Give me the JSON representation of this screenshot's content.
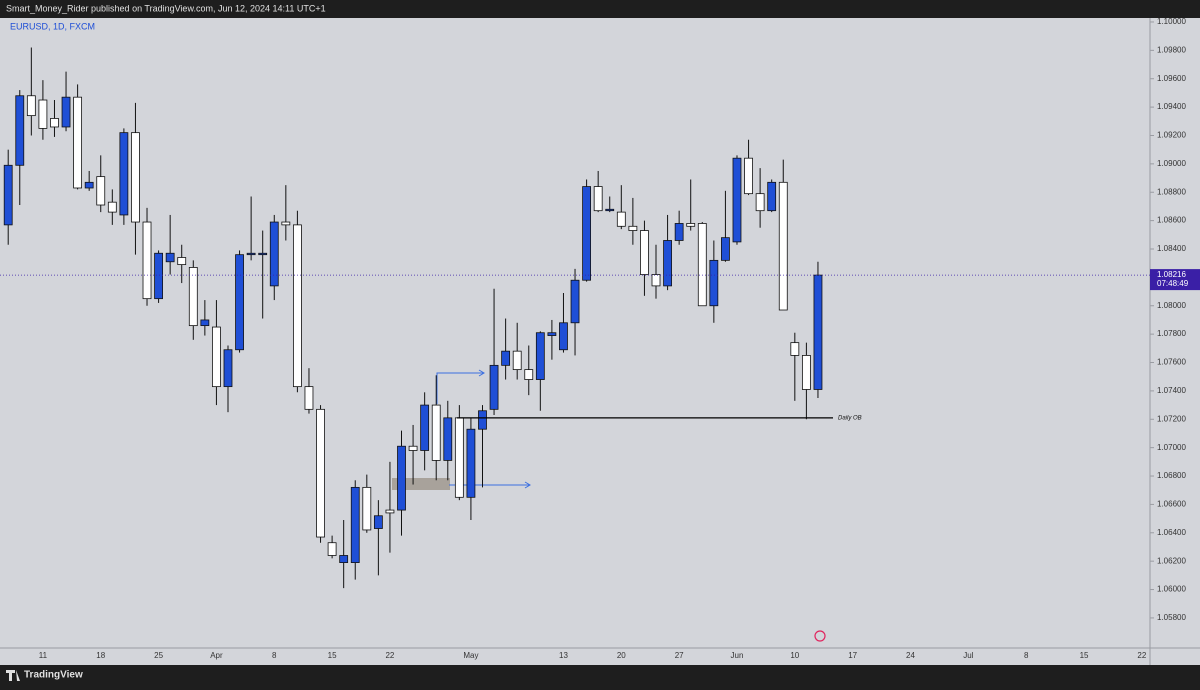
{
  "header": {
    "text": "Smart_Money_Rider published on TradingView.com, Jun 12, 2024 14:11 UTC+1"
  },
  "footer": {
    "brand": "TradingView"
  },
  "chart_data": {
    "type": "candlestick",
    "title": "EURUSD, 1D, FXCM",
    "up_color": "#1f4fd6",
    "down_color": "#ffffff",
    "categories": [
      null,
      null,
      null,
      "11",
      null,
      null,
      null,
      null,
      "18",
      null,
      null,
      null,
      null,
      "25",
      null,
      null,
      null,
      null,
      "Apr",
      null,
      null,
      null,
      null,
      "8",
      null,
      null,
      null,
      null,
      "15",
      null,
      null,
      null,
      null,
      "22",
      null,
      null,
      null,
      null,
      null,
      null,
      "May",
      null,
      null,
      null,
      null,
      null,
      null,
      null,
      "13",
      null,
      null,
      null,
      null,
      "20",
      null,
      null,
      null,
      null,
      "27",
      null,
      null,
      null,
      null,
      "Jun",
      null,
      null,
      null,
      null,
      "10",
      null,
      null,
      null,
      null,
      "17",
      null,
      null,
      null,
      null,
      "24",
      null,
      null,
      null,
      null,
      "Jul",
      null,
      null,
      null,
      null,
      "8",
      null,
      null,
      null,
      null,
      "15",
      null,
      null,
      null,
      null,
      "22"
    ],
    "open": [
      1.0857,
      1.0899,
      1.0948,
      1.0945,
      1.0932,
      1.0926,
      1.0947,
      1.0883,
      1.0891,
      1.0873,
      1.0864,
      1.0922,
      1.0859,
      1.0805,
      1.0831,
      1.0834,
      1.0827,
      1.0786,
      1.0785,
      1.0743,
      1.0769,
      1.0836,
      1.0836,
      1.0814,
      1.0859,
      1.0857,
      1.0743,
      1.0727,
      1.0633,
      1.0619,
      1.0619,
      1.0672,
      1.0643,
      1.0656,
      1.0656,
      1.0701,
      1.0698,
      1.073,
      1.0691,
      1.0721,
      1.0665,
      1.0713,
      1.0727,
      1.0758,
      1.0768,
      1.0755,
      1.0748,
      1.0779,
      1.0769,
      1.0788,
      1.0818,
      1.0884,
      1.0867,
      1.0866,
      1.0856,
      1.0853,
      1.0822,
      1.0814,
      1.0846,
      1.0858,
      1.0858,
      1.08,
      1.0832,
      1.0845,
      1.0904,
      1.0879,
      1.0867,
      1.0887,
      1.0774,
      1.0765,
      1.0741,
      null,
      null,
      null,
      null,
      null,
      null,
      null,
      null,
      null,
      null,
      null,
      null,
      null,
      null,
      null,
      null,
      null,
      null,
      null,
      null,
      null,
      null,
      null,
      null,
      null,
      null,
      null,
      null
    ],
    "high": [
      1.091,
      1.0952,
      1.0982,
      1.0959,
      1.0945,
      1.0965,
      1.0956,
      1.0895,
      1.0906,
      1.0882,
      1.0925,
      1.0943,
      1.0869,
      1.0839,
      1.0864,
      1.0843,
      1.0832,
      1.0804,
      1.0804,
      1.0772,
      1.0839,
      1.0877,
      1.0853,
      1.0864,
      1.0885,
      1.0867,
      1.0756,
      1.073,
      1.0638,
      1.0649,
      1.0677,
      1.0681,
      1.0663,
      1.069,
      1.0712,
      1.0716,
      1.0739,
      1.0751,
      1.0733,
      1.073,
      1.0721,
      1.073,
      1.0812,
      1.0791,
      1.0788,
      1.0772,
      1.0782,
      1.079,
      1.0809,
      1.0826,
      1.0889,
      1.0895,
      1.0877,
      1.0885,
      1.0876,
      1.086,
      1.0843,
      1.0864,
      1.0867,
      1.0889,
      1.0859,
      1.0846,
      1.0881,
      1.0906,
      1.0917,
      1.0897,
      1.0889,
      1.0903,
      1.0781,
      1.0774,
      1.0831,
      null,
      null,
      null,
      null,
      null,
      null,
      null,
      null,
      null,
      null,
      null,
      null,
      null,
      null,
      null,
      null,
      null,
      null,
      null,
      null,
      null,
      null,
      null,
      null,
      null,
      null,
      null,
      null
    ],
    "low": [
      1.0843,
      1.0871,
      1.092,
      1.0917,
      1.0919,
      1.0923,
      1.0882,
      1.0881,
      1.0866,
      1.0857,
      1.0857,
      1.0836,
      1.08,
      1.0802,
      1.0822,
      1.0816,
      1.0776,
      1.0779,
      1.073,
      1.0725,
      1.0767,
      1.0832,
      1.0791,
      1.0804,
      1.0846,
      1.0739,
      1.0724,
      1.0633,
      1.0622,
      1.0601,
      1.0607,
      1.064,
      1.061,
      1.0626,
      1.0638,
      1.0674,
      1.0684,
      1.0677,
      1.0677,
      1.0663,
      1.0649,
      1.0672,
      1.0723,
      1.0748,
      1.0748,
      1.0737,
      1.0726,
      1.0762,
      1.0767,
      1.0765,
      1.0817,
      1.0866,
      1.0866,
      1.0854,
      1.0843,
      1.0807,
      1.0805,
      1.0811,
      1.0843,
      1.0853,
      1.08,
      1.0788,
      1.0831,
      1.0843,
      1.0878,
      1.0855,
      1.0866,
      1.0797,
      1.0733,
      1.072,
      1.0735,
      null,
      null,
      null,
      null,
      null,
      null,
      null,
      null,
      null,
      null,
      null,
      null,
      null,
      null,
      null,
      null,
      null,
      null,
      null,
      null,
      null,
      null,
      null,
      null,
      null,
      null,
      null,
      null
    ],
    "close": [
      1.0899,
      1.0948,
      1.0934,
      1.0925,
      1.0926,
      1.0947,
      1.0883,
      1.0887,
      1.0871,
      1.0866,
      1.0922,
      1.0859,
      1.0805,
      1.0837,
      1.0837,
      1.0829,
      1.0786,
      1.079,
      1.0743,
      1.0769,
      1.0836,
      1.0837,
      1.0837,
      1.0859,
      1.0857,
      1.0743,
      1.0727,
      1.0637,
      1.0624,
      1.0624,
      1.0672,
      1.0642,
      1.0652,
      1.0654,
      1.0701,
      1.0698,
      1.073,
      1.0691,
      1.0721,
      1.0665,
      1.0713,
      1.0726,
      1.0758,
      1.0768,
      1.0755,
      1.0748,
      1.0781,
      1.0781,
      1.0788,
      1.0818,
      1.0884,
      1.0867,
      1.0868,
      1.0856,
      1.0853,
      1.0822,
      1.0814,
      1.0846,
      1.0858,
      1.0856,
      1.08,
      1.0832,
      1.0848,
      1.0904,
      1.0879,
      1.0867,
      1.0887,
      1.0797,
      1.0765,
      1.0741,
      1.08216,
      null,
      null,
      null,
      null,
      null,
      null,
      null,
      null,
      null,
      null,
      null,
      null,
      null,
      null,
      null,
      null,
      null,
      null,
      null,
      null,
      null,
      null,
      null,
      null,
      null,
      null,
      null,
      null
    ],
    "ylim": [
      1.05588,
      1.10028
    ],
    "yticks": [
      {
        "value": 1.058,
        "label": "1.05800"
      },
      {
        "value": 1.06,
        "label": "1.06000"
      },
      {
        "value": 1.062,
        "label": "1.06200"
      },
      {
        "value": 1.064,
        "label": "1.06400"
      },
      {
        "value": 1.066,
        "label": "1.06600"
      },
      {
        "value": 1.068,
        "label": "1.06800"
      },
      {
        "value": 1.07,
        "label": "1.07000"
      },
      {
        "value": 1.072,
        "label": "1.07200"
      },
      {
        "value": 1.074,
        "label": "1.07400"
      },
      {
        "value": 1.076,
        "label": "1.07600"
      },
      {
        "value": 1.078,
        "label": "1.07800"
      },
      {
        "value": 1.08,
        "label": "1.08000"
      },
      {
        "value": 1.082,
        "label": "1.08200"
      },
      {
        "value": 1.084,
        "label": "1.08400"
      },
      {
        "value": 1.086,
        "label": "1.08600"
      },
      {
        "value": 1.088,
        "label": "1.08800"
      },
      {
        "value": 1.09,
        "label": "1.09000"
      },
      {
        "value": 1.092,
        "label": "1.09200"
      },
      {
        "value": 1.094,
        "label": "1.09400"
      },
      {
        "value": 1.096,
        "label": "1.09600"
      },
      {
        "value": 1.098,
        "label": "1.09800"
      },
      {
        "value": 1.1,
        "label": "1.10000"
      }
    ],
    "last_price": 1.08216,
    "last_price_color": "#3a1fa6",
    "countdown": "07:48:49",
    "annotations": [
      {
        "text": "Daily OB",
        "value": 1.0721
      }
    ]
  }
}
